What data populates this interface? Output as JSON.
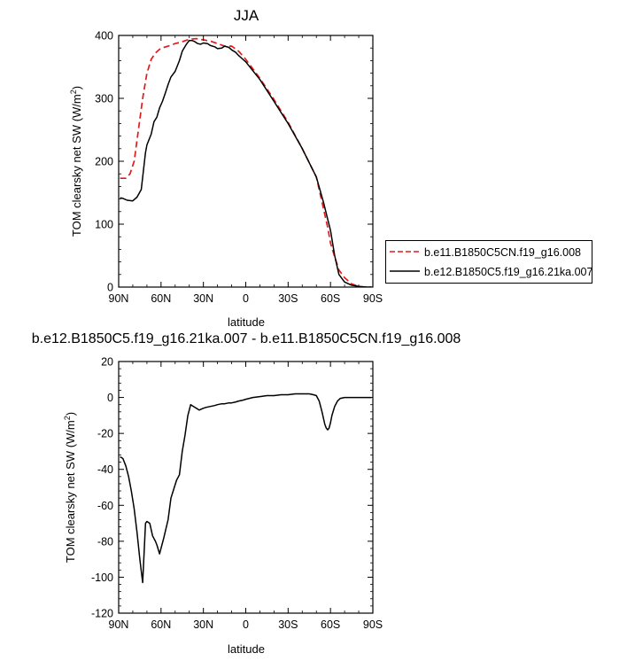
{
  "chart_data": [
    {
      "type": "line",
      "title": "JJA",
      "xlabel": "latitude",
      "ylabel": "TOM clearsky net SW (W/m",
      "ylabel_sup": "2",
      "ylabel_close": ")",
      "xlim": [
        90,
        -90
      ],
      "ylim": [
        0,
        400
      ],
      "yticks": [
        0,
        100,
        200,
        300,
        400
      ],
      "xtick_values": [
        90,
        60,
        30,
        0,
        -30,
        -60,
        -90
      ],
      "xtick_labels": [
        "90N",
        "60N",
        "30N",
        "0",
        "30S",
        "60S",
        "90S"
      ],
      "legend_position": "right",
      "series": [
        {
          "name": "b.e11.B1850C5CN.f19_g16.008",
          "color": "#e41a1c",
          "dash": "dashed",
          "x": [
            89,
            85,
            82,
            79,
            76,
            73,
            70,
            67,
            64,
            61,
            58,
            55,
            50,
            45,
            40,
            35,
            30,
            25,
            20,
            15,
            10,
            5,
            0,
            -10,
            -20,
            -30,
            -40,
            -50,
            -55,
            -58,
            -60,
            -63,
            -66,
            -70,
            -75,
            -80,
            -85,
            -89
          ],
          "y": [
            173,
            173,
            180,
            200,
            250,
            300,
            340,
            362,
            372,
            378,
            381,
            383,
            387,
            390,
            394,
            395,
            393,
            391,
            387,
            383,
            383,
            375,
            362,
            332,
            298,
            262,
            220,
            175,
            125,
            95,
            70,
            48,
            27,
            15,
            5,
            1,
            0,
            0
          ]
        },
        {
          "name": "b.e12.B1850C5.f19_g16.21ka.007",
          "color": "#000000",
          "dash": "solid",
          "x": [
            89,
            87,
            84,
            80,
            77,
            74,
            71,
            70,
            67,
            65,
            63,
            61,
            59,
            57,
            55,
            53,
            50,
            47,
            45,
            42,
            40,
            38,
            36,
            34,
            32,
            30,
            27,
            25,
            22,
            20,
            17,
            15,
            12,
            10,
            7,
            5,
            2,
            0,
            -10,
            -20,
            -30,
            -40,
            -50,
            -55,
            -60,
            -63,
            -66,
            -70,
            -75,
            -80,
            -85,
            -89
          ],
          "y": [
            142,
            141,
            138,
            137,
            143,
            155,
            214,
            226,
            243,
            263,
            270,
            285,
            295,
            308,
            322,
            334,
            343,
            360,
            375,
            386,
            392,
            392,
            390,
            387,
            386,
            388,
            387,
            384,
            382,
            379,
            380,
            383,
            381,
            377,
            373,
            368,
            362,
            358,
            330,
            295,
            260,
            220,
            175,
            135,
            90,
            50,
            20,
            8,
            3,
            1,
            0,
            0
          ]
        }
      ]
    },
    {
      "type": "line",
      "title": "b.e12.B1850C5.f19_g16.21ka.007 - b.e11.B1850C5CN.f19_g16.008",
      "xlabel": "latitude",
      "ylabel": "TOM clearsky net SW (W/m",
      "ylabel_sup": "2",
      "ylabel_close": ")",
      "xlim": [
        90,
        -90
      ],
      "ylim": [
        -120,
        20
      ],
      "yticks": [
        -120,
        -100,
        -80,
        -60,
        -40,
        -20,
        0,
        20
      ],
      "xtick_values": [
        90,
        60,
        30,
        0,
        -30,
        -60,
        -90
      ],
      "xtick_labels": [
        "90N",
        "60N",
        "30N",
        "0",
        "30S",
        "60S",
        "90S"
      ],
      "series": [
        {
          "name": "",
          "color": "#000000",
          "dash": "solid",
          "x": [
            89,
            87,
            85,
            83,
            81,
            79,
            77,
            75,
            73,
            71,
            70,
            68,
            66,
            64,
            63,
            61,
            58,
            55,
            53,
            51,
            49,
            47,
            45,
            43,
            41,
            39,
            37,
            35,
            33,
            30,
            28,
            25,
            22,
            20,
            17,
            15,
            12,
            10,
            7,
            5,
            2,
            0,
            -5,
            -10,
            -15,
            -20,
            -25,
            -30,
            -35,
            -40,
            -45,
            -48,
            -50,
            -52,
            -54,
            -56,
            -57,
            -58,
            -59,
            -60,
            -61,
            -63,
            -65,
            -67,
            -70,
            -75,
            -80,
            -85,
            -89
          ],
          "y": [
            -33,
            -34,
            -38,
            -44,
            -52,
            -62,
            -75,
            -90,
            -103,
            -70,
            -69,
            -70,
            -77,
            -80,
            -82,
            -87,
            -78,
            -68,
            -56,
            -51,
            -46,
            -43,
            -30,
            -21,
            -10,
            -4,
            -5,
            -6,
            -7,
            -6,
            -5.5,
            -5,
            -4.5,
            -4,
            -3.5,
            -3.5,
            -3,
            -3,
            -2.5,
            -2,
            -1.5,
            -1,
            0,
            0.5,
            1,
            1,
            1.5,
            1.5,
            2,
            2,
            2,
            1.5,
            1,
            -2,
            -8,
            -15,
            -17,
            -18,
            -17,
            -14,
            -10,
            -5,
            -2,
            -0.5,
            0,
            0,
            0,
            0,
            0
          ]
        }
      ]
    }
  ]
}
